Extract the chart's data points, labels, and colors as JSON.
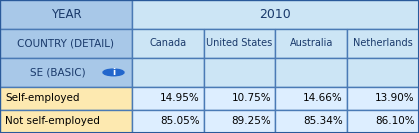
{
  "header_year_label": "YEAR",
  "year_value": "2010",
  "country_label": "COUNTRY (DETAIL)",
  "se_label": "SE (BASIC)",
  "countries": [
    "Canada",
    "United States",
    "Australia",
    "Netherlands"
  ],
  "rows": [
    {
      "label": "Self-employed",
      "values": [
        "14.95%",
        "10.75%",
        "14.66%",
        "13.90%"
      ]
    },
    {
      "label": "Not self-employed",
      "values": [
        "85.05%",
        "89.25%",
        "85.34%",
        "86.10%"
      ]
    }
  ],
  "header_bg": "#cce5f5",
  "header_text_color": "#1a3a6b",
  "left_header_bg": "#a8c8e8",
  "row_bg": "#fde9b0",
  "row_text_color": "#000000",
  "border_color": "#4a7ab5",
  "outer_border_color": "#2a5a9a",
  "cell_bg": "#ddeeff",
  "info_circle_color": "#2266cc",
  "figsize": [
    4.19,
    1.33
  ],
  "dpi": 100
}
